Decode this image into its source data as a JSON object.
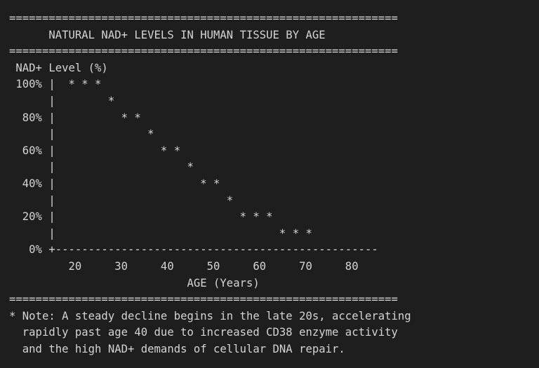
{
  "colors": {
    "background": "#1e1e1e",
    "text": "#d4d4d4"
  },
  "terminal": {
    "lines": [
      "===========================================================",
      "      NATURAL NAD+ LEVELS IN HUMAN TISSUE BY AGE",
      "===========================================================",
      " NAD+ Level (%)",
      " 100% |  * * *",
      "      |        *",
      "  80% |          * *",
      "      |              *",
      "  60% |                * *",
      "      |                    *",
      "  40% |                      * *",
      "      |                          *",
      "  20% |                            * * *",
      "      |                                  * * *",
      "   0% +-------------------------------------------------",
      "         20     30     40     50     60     70     80",
      "                           AGE (Years)",
      "===========================================================",
      "* Note: A steady decline begins in the late 20s, accelerating",
      "  rapidly past age 40 due to increased CD38 enzyme activity",
      "  and the high NAD+ demands of cellular DNA repair."
    ]
  }
}
